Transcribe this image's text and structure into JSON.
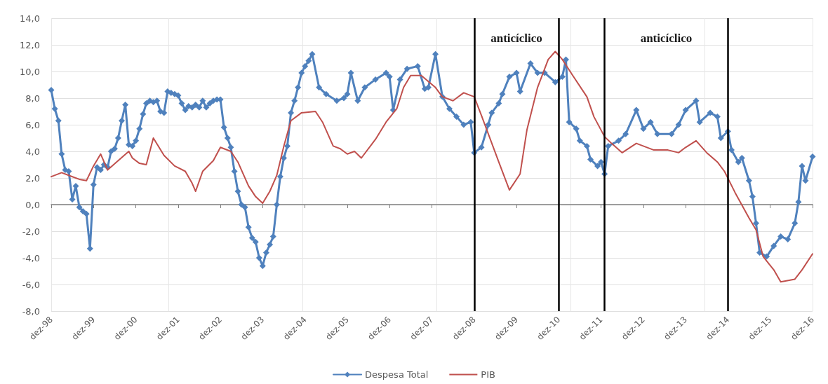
{
  "chart_data": {
    "type": "line",
    "xlim": [
      "1998-12",
      "2016-12"
    ],
    "xticks": [
      {
        "value": "1998-12",
        "label": "dez-98"
      },
      {
        "value": "1999-12",
        "label": "dez-99"
      },
      {
        "value": "2000-12",
        "label": "dez-00"
      },
      {
        "value": "2001-12",
        "label": "dez-01"
      },
      {
        "value": "2002-12",
        "label": "dez-02"
      },
      {
        "value": "2003-12",
        "label": "dez-03"
      },
      {
        "value": "2004-12",
        "label": "dez-04"
      },
      {
        "value": "2005-12",
        "label": "dez-05"
      },
      {
        "value": "2006-12",
        "label": "dez-06"
      },
      {
        "value": "2007-12",
        "label": "dez-07"
      },
      {
        "value": "2008-12",
        "label": "dez-08"
      },
      {
        "value": "2009-12",
        "label": "dez-09"
      },
      {
        "value": "2010-12",
        "label": "dez-10"
      },
      {
        "value": "2011-12",
        "label": "dez-11"
      },
      {
        "value": "2012-12",
        "label": "dez-12"
      },
      {
        "value": "2013-12",
        "label": "dez-13"
      },
      {
        "value": "2014-12",
        "label": "dez-14"
      },
      {
        "value": "2015-12",
        "label": "dez-15"
      },
      {
        "value": "2016-12",
        "label": "dez-16"
      }
    ],
    "ylim": [
      -8,
      14
    ],
    "yticks": [
      {
        "value": -8,
        "label": "-8,0"
      },
      {
        "value": -6,
        "label": "-6,0"
      },
      {
        "value": -4,
        "label": "-4,0"
      },
      {
        "value": -2,
        "label": "-2,0"
      },
      {
        "value": 0,
        "label": "0,0"
      },
      {
        "value": 2,
        "label": "2,0"
      },
      {
        "value": 4,
        "label": "4,0"
      },
      {
        "value": 6,
        "label": "6,0"
      },
      {
        "value": 8,
        "label": "8,0"
      },
      {
        "value": 10,
        "label": "10,0"
      },
      {
        "value": 12,
        "label": "12,0"
      },
      {
        "value": 14,
        "label": "14,0"
      }
    ],
    "grid": true,
    "legend": "bottom",
    "series": [
      {
        "name": "Despesa Total",
        "color": "#4f81bd",
        "marker": "diamond",
        "x": [
          "1998-12",
          "1999-01",
          "1999-02",
          "1999-03",
          "1999-04",
          "1999-05",
          "1999-06",
          "1999-07",
          "1999-08",
          "1999-09",
          "1999-10",
          "1999-11",
          "1999-12",
          "2000-01",
          "2000-02",
          "2000-03",
          "2000-04",
          "2000-05",
          "2000-06",
          "2000-07",
          "2000-08",
          "2000-09",
          "2000-10",
          "2000-11",
          "2000-12",
          "2001-01",
          "2001-02",
          "2001-03",
          "2001-04",
          "2001-05",
          "2001-06",
          "2001-07",
          "2001-08",
          "2001-09",
          "2001-10",
          "2001-11",
          "2001-12",
          "2002-01",
          "2002-02",
          "2002-03",
          "2002-04",
          "2002-05",
          "2002-06",
          "2002-07",
          "2002-08",
          "2002-09",
          "2002-10",
          "2002-11",
          "2002-12",
          "2003-01",
          "2003-02",
          "2003-03",
          "2003-04",
          "2003-05",
          "2003-06",
          "2003-07",
          "2003-08",
          "2003-09",
          "2003-10",
          "2003-11",
          "2003-12",
          "2004-01",
          "2004-02",
          "2004-03",
          "2004-04",
          "2004-05",
          "2004-06",
          "2004-07",
          "2004-08",
          "2004-09",
          "2004-10",
          "2004-11",
          "2004-12",
          "2005-01",
          "2005-02",
          "2005-04",
          "2005-06",
          "2005-09",
          "2005-11",
          "2005-12",
          "2006-01",
          "2006-03",
          "2006-05",
          "2006-08",
          "2006-11",
          "2006-12",
          "2007-01",
          "2007-03",
          "2007-05",
          "2007-08",
          "2007-10",
          "2007-11",
          "2008-01",
          "2008-03",
          "2008-05",
          "2008-07",
          "2008-09",
          "2008-11",
          "2008-12",
          "2009-02",
          "2009-04",
          "2009-05",
          "2009-07",
          "2009-08",
          "2009-10",
          "2009-12",
          "2010-01",
          "2010-04",
          "2010-06",
          "2010-08",
          "2010-11",
          "2011-01",
          "2011-02",
          "2011-03",
          "2011-05",
          "2011-06",
          "2011-08",
          "2011-09",
          "2011-11",
          "2011-12",
          "2012-01",
          "2012-02",
          "2012-05",
          "2012-07",
          "2012-10",
          "2012-12",
          "2013-02",
          "2013-04",
          "2013-08",
          "2013-10",
          "2013-12",
          "2014-03",
          "2014-04",
          "2014-07",
          "2014-09",
          "2014-10",
          "2014-12",
          "2015-01",
          "2015-03",
          "2015-04",
          "2015-06",
          "2015-07",
          "2015-08",
          "2015-09",
          "2015-11",
          "2016-01",
          "2016-03",
          "2016-05",
          "2016-07",
          "2016-08",
          "2016-09",
          "2016-10",
          "2016-12"
        ],
        "values": [
          8.6,
          7.2,
          6.3,
          3.8,
          2.6,
          2.5,
          0.4,
          1.4,
          -0.2,
          -0.5,
          -0.7,
          -3.3,
          1.5,
          2.8,
          2.6,
          3.0,
          2.8,
          4.0,
          4.2,
          5.0,
          6.3,
          7.5,
          4.5,
          4.4,
          4.8,
          5.7,
          6.8,
          7.6,
          7.8,
          7.7,
          7.8,
          7.0,
          6.9,
          8.5,
          8.4,
          8.3,
          8.2,
          7.6,
          7.1,
          7.4,
          7.3,
          7.5,
          7.3,
          7.8,
          7.3,
          7.6,
          7.8,
          7.9,
          7.9,
          5.8,
          5.0,
          4.3,
          2.5,
          1.0,
          0.0,
          -0.2,
          -1.7,
          -2.5,
          -2.8,
          -4.0,
          -4.6,
          -3.6,
          -3.0,
          -2.4,
          0.0,
          2.1,
          3.5,
          4.4,
          6.9,
          7.8,
          8.8,
          9.9,
          10.4,
          10.8,
          11.3,
          8.8,
          8.3,
          7.8,
          8.0,
          8.3,
          9.9,
          7.8,
          8.8,
          9.4,
          9.9,
          9.6,
          7.1,
          9.4,
          10.2,
          10.4,
          8.7,
          8.8,
          11.3,
          8.1,
          7.2,
          6.6,
          6.0,
          6.2,
          3.9,
          4.3,
          6.0,
          6.9,
          7.6,
          8.3,
          9.6,
          9.9,
          8.5,
          10.6,
          9.9,
          9.9,
          9.2,
          9.6,
          10.9,
          6.2,
          5.7,
          4.8,
          4.4,
          3.4,
          2.9,
          3.2,
          2.3,
          4.4,
          4.8,
          5.3,
          7.1,
          5.7,
          6.2,
          5.3,
          5.3,
          6.0,
          7.1,
          7.8,
          6.2,
          6.9,
          6.6,
          5.0,
          5.5,
          4.1,
          3.2,
          3.5,
          1.8,
          0.6,
          -1.4,
          -3.6,
          -3.9,
          -3.1,
          -2.4,
          -2.6,
          -1.4,
          0.2,
          2.9,
          1.8,
          3.6
        ]
      },
      {
        "name": "PIB",
        "color": "#c0504d",
        "marker": "none",
        "x": [
          "1998-12",
          "1999-03",
          "1999-05",
          "1999-08",
          "1999-10",
          "1999-12",
          "2000-02",
          "2000-04",
          "2000-07",
          "2000-10",
          "2000-11",
          "2001-01",
          "2001-03",
          "2001-05",
          "2001-08",
          "2001-11",
          "2002-02",
          "2002-04",
          "2002-05",
          "2002-07",
          "2002-10",
          "2002-12",
          "2003-03",
          "2003-05",
          "2003-08",
          "2003-10",
          "2003-12",
          "2004-02",
          "2004-04",
          "2004-06",
          "2004-08",
          "2004-11",
          "2005-03",
          "2005-05",
          "2005-08",
          "2005-10",
          "2005-12",
          "2006-02",
          "2006-04",
          "2006-08",
          "2006-11",
          "2007-02",
          "2007-04",
          "2007-06",
          "2007-09",
          "2008-01",
          "2008-03",
          "2008-06",
          "2008-09",
          "2008-12",
          "2009-02",
          "2009-07",
          "2009-10",
          "2010-01",
          "2010-03",
          "2010-06",
          "2010-09",
          "2010-11",
          "2011-01",
          "2011-04",
          "2011-08",
          "2011-10",
          "2012-01",
          "2012-03",
          "2012-06",
          "2012-10",
          "2013-03",
          "2013-07",
          "2013-10",
          "2013-12",
          "2014-03",
          "2014-06",
          "2014-09",
          "2014-11",
          "2015-02",
          "2015-06",
          "2015-08",
          "2015-10",
          "2016-01",
          "2016-03",
          "2016-07",
          "2016-09",
          "2016-12"
        ],
        "values": [
          2.1,
          2.4,
          2.2,
          1.9,
          1.8,
          2.9,
          3.8,
          2.6,
          3.3,
          4.0,
          3.5,
          3.1,
          3.0,
          5.0,
          3.7,
          2.9,
          2.5,
          1.6,
          1.0,
          2.5,
          3.3,
          4.3,
          4.0,
          3.2,
          1.4,
          0.6,
          0.1,
          1.0,
          2.2,
          4.4,
          6.3,
          6.9,
          7.0,
          6.2,
          4.4,
          4.2,
          3.8,
          4.0,
          3.5,
          4.9,
          6.2,
          7.2,
          8.8,
          9.7,
          9.7,
          8.8,
          8.1,
          7.8,
          8.4,
          8.1,
          6.7,
          3.2,
          1.1,
          2.3,
          5.6,
          8.8,
          10.9,
          11.5,
          10.9,
          9.7,
          8.1,
          6.6,
          5.1,
          4.6,
          3.9,
          4.6,
          4.1,
          4.1,
          3.9,
          4.3,
          4.8,
          3.9,
          3.2,
          2.5,
          0.9,
          -1.0,
          -1.9,
          -3.9,
          -4.9,
          -5.8,
          -5.6,
          -4.9,
          -3.7
        ]
      }
    ],
    "ref_lines": [
      {
        "axis": "x",
        "value": "2008-12",
        "color": "#000000"
      },
      {
        "axis": "x",
        "value": "2010-12",
        "color": "#000000"
      },
      {
        "axis": "x",
        "value": "2012-01",
        "color": "#000000"
      },
      {
        "axis": "x",
        "value": "2014-12",
        "color": "#000000"
      }
    ],
    "annotations": [
      "anticíclico",
      "anticíclico"
    ]
  }
}
